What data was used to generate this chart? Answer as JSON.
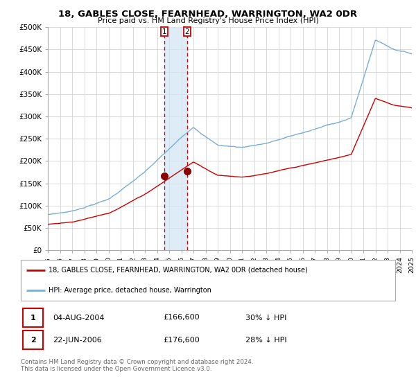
{
  "title": "18, GABLES CLOSE, FEARNHEAD, WARRINGTON, WA2 0DR",
  "subtitle": "Price paid vs. HM Land Registry's House Price Index (HPI)",
  "legend_line1": "18, GABLES CLOSE, FEARNHEAD, WARRINGTON, WA2 0DR (detached house)",
  "legend_line2": "HPI: Average price, detached house, Warrington",
  "table_rows": [
    {
      "num": "1",
      "date": "04-AUG-2004",
      "price": "£166,600",
      "hpi": "30% ↓ HPI"
    },
    {
      "num": "2",
      "date": "22-JUN-2006",
      "price": "£176,600",
      "hpi": "28% ↓ HPI"
    }
  ],
  "footer": "Contains HM Land Registry data © Crown copyright and database right 2024.\nThis data is licensed under the Open Government Licence v3.0.",
  "red_line_color": "#cc0000",
  "blue_line_color": "#7aadd4",
  "sale1_x": 2004.58,
  "sale1_y": 166600,
  "sale2_x": 2006.47,
  "sale2_y": 176600,
  "vline1_x": 2004.58,
  "vline2_x": 2006.47,
  "shade_color": "#d0e4f5",
  "ylim": [
    0,
    500000
  ],
  "xlim_start": 1995,
  "xlim_end": 2025,
  "yticks": [
    0,
    50000,
    100000,
    150000,
    200000,
    250000,
    300000,
    350000,
    400000,
    450000,
    500000
  ],
  "ylabels": [
    "£0",
    "£50K",
    "£100K",
    "£150K",
    "£200K",
    "£250K",
    "£300K",
    "£350K",
    "£400K",
    "£450K",
    "£500K"
  ]
}
